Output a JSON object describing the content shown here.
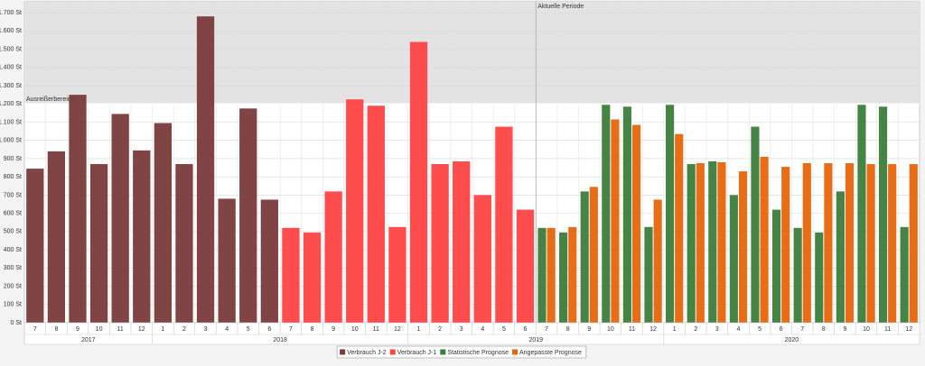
{
  "chart_data": {
    "type": "bar",
    "categories": [
      "7",
      "8",
      "9",
      "10",
      "11",
      "12",
      "1",
      "2",
      "3",
      "4",
      "5",
      "6",
      "7",
      "8",
      "9",
      "10",
      "11",
      "12",
      "1",
      "2",
      "3",
      "4",
      "5",
      "6",
      "7",
      "8",
      "9",
      "10",
      "11",
      "12",
      "1",
      "2",
      "3",
      "4",
      "5",
      "6",
      "7",
      "8",
      "9",
      "10",
      "11",
      "12"
    ],
    "year_labels": [
      "2017",
      "2018",
      "2019",
      "2020"
    ],
    "series": [
      {
        "name": "Verbrauch J-2",
        "color": "#7a3a3a",
        "values": [
          845,
          940,
          1250,
          870,
          1145,
          945,
          1095,
          870,
          1680,
          680,
          1175,
          675,
          null,
          null,
          null,
          null,
          null,
          null,
          null,
          null,
          null,
          null,
          null,
          null,
          null,
          null,
          null,
          null,
          null,
          null,
          null,
          null,
          null,
          null,
          null,
          null,
          null,
          null,
          null,
          null,
          null,
          null
        ]
      },
      {
        "name": "Verbrauch J-1",
        "color": "#ff4242",
        "values": [
          null,
          null,
          null,
          null,
          null,
          null,
          null,
          null,
          null,
          null,
          null,
          null,
          520,
          495,
          720,
          1225,
          1190,
          525,
          1540,
          870,
          885,
          700,
          1075,
          620,
          null,
          null,
          null,
          null,
          null,
          null,
          null,
          null,
          null,
          null,
          null,
          null,
          null,
          null,
          null,
          null,
          null,
          null
        ]
      },
      {
        "name": "Statistische Prognose",
        "color": "#3c7d3c",
        "values": [
          null,
          null,
          null,
          null,
          null,
          null,
          null,
          null,
          null,
          null,
          null,
          null,
          null,
          null,
          null,
          null,
          null,
          null,
          null,
          null,
          null,
          null,
          null,
          null,
          520,
          495,
          720,
          1195,
          1185,
          525,
          1195,
          870,
          885,
          700,
          1075,
          620,
          520,
          495,
          720,
          1195,
          1185,
          525
        ]
      },
      {
        "name": "Angepasste Prognose",
        "color": "#e8650a",
        "values": [
          null,
          null,
          null,
          null,
          null,
          null,
          null,
          null,
          null,
          null,
          null,
          null,
          null,
          null,
          null,
          null,
          null,
          null,
          null,
          null,
          null,
          null,
          null,
          null,
          520,
          525,
          745,
          1115,
          1085,
          675,
          1035,
          875,
          880,
          830,
          910,
          855,
          875,
          875,
          875,
          870,
          870,
          870
        ]
      }
    ],
    "ylim": [
      0,
      1760
    ],
    "yticks": [
      {
        "value": 0,
        "label": "0 St"
      },
      {
        "value": 100,
        "label": "100 St"
      },
      {
        "value": 200,
        "label": "200 St"
      },
      {
        "value": 300,
        "label": "300 St"
      },
      {
        "value": 400,
        "label": "400 St"
      },
      {
        "value": 500,
        "label": "500 St"
      },
      {
        "value": 600,
        "label": "600 St"
      },
      {
        "value": 700,
        "label": "700 St"
      },
      {
        "value": 800,
        "label": "800 St"
      },
      {
        "value": 900,
        "label": "900 St"
      },
      {
        "value": 1000,
        "label": "1.000 St"
      },
      {
        "value": 1100,
        "label": "1.100 St"
      },
      {
        "value": 1200,
        "label": "1.200 St"
      },
      {
        "value": 1300,
        "label": "1.300 St"
      },
      {
        "value": 1400,
        "label": "1.400 St"
      },
      {
        "value": 1500,
        "label": "1.500 St"
      },
      {
        "value": 1600,
        "label": "1.600 St"
      },
      {
        "value": 1700,
        "label": "1.700 St"
      }
    ],
    "grid": true,
    "outlier_zone": {
      "label": "Ausreißerbereich",
      "from": 1200
    },
    "current_period": {
      "label": "Aktuelle Periode",
      "category_index": 24
    },
    "legend": "bottom"
  }
}
